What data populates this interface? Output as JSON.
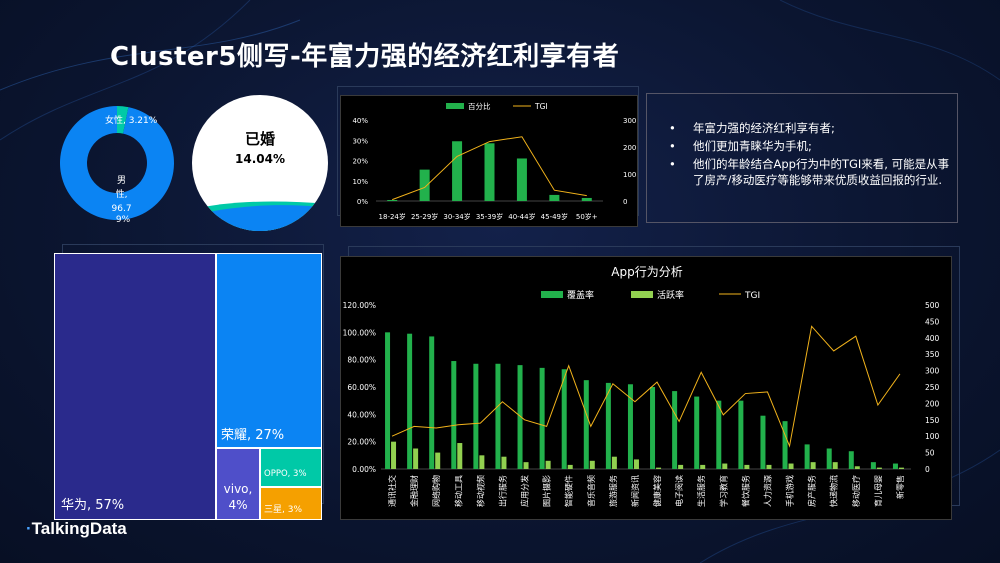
{
  "page": {
    "title": "Cluster5侧写-年富力强的经济红利享有者",
    "logo": "TalkingData"
  },
  "colors": {
    "green": "#22b14c",
    "light_green": "#92d050",
    "orange": "#f2b31b",
    "blue": "#0b84f3",
    "navy": "#2a2a8c",
    "teal": "#00c9a7",
    "purple": "#4f4fc9",
    "amber": "#f5a000"
  },
  "gender": {
    "female_label": "女性, 3.21%",
    "male_label_lines": [
      "男",
      "性,",
      "96.7",
      "9%"
    ],
    "female_value": 3.21,
    "male_value": 96.79
  },
  "married": {
    "label": "已婚",
    "value_text": "14.04%",
    "value": 14.04
  },
  "notes": {
    "items": [
      "年富力强的经济红利享有者;",
      "他们更加青睐华为手机;",
      "他们的年龄结合App行为中的TGI来看, 可能是从事了房产/移动医疗等能够带来优质收益回报的行业."
    ]
  },
  "chart_data": [
    {
      "type": "bar",
      "title": "",
      "legend": [
        "百分比",
        "TGI"
      ],
      "legend_position": "top",
      "categories": [
        "18-24岁",
        "25-29岁",
        "30-34岁",
        "35-39岁",
        "40-44岁",
        "45-49岁",
        "50岁+"
      ],
      "series": [
        {
          "name": "百分比",
          "type": "bar",
          "axis": "left",
          "values": [
            0.5,
            15.5,
            29.5,
            28.5,
            21,
            3,
            1.5
          ]
        },
        {
          "name": "TGI",
          "type": "line",
          "axis": "right",
          "values": [
            5,
            50,
            165,
            220,
            238,
            40,
            20
          ]
        }
      ],
      "y_left": {
        "ticks": [
          "0%",
          "10%",
          "20%",
          "30%",
          "40%"
        ],
        "ylim": [
          0,
          40
        ]
      },
      "y_right": {
        "ticks": [
          "0",
          "100",
          "200",
          "300"
        ],
        "ylim": [
          0,
          300
        ]
      }
    },
    {
      "type": "bar",
      "title": "App行为分析",
      "legend": [
        "覆盖率",
        "活跃率",
        "TGI"
      ],
      "legend_position": "top",
      "categories": [
        "通讯社交",
        "金融理财",
        "网络购物",
        "移动工具",
        "移动视频",
        "出行服务",
        "应用分发",
        "图片摄影",
        "智能硬件",
        "音乐音频",
        "旅游服务",
        "新闻资讯",
        "健康美容",
        "电子阅读",
        "生活服务",
        "学习教育",
        "餐饮服务",
        "人力资源",
        "手机游戏",
        "房产服务",
        "快递物流",
        "移动医疗",
        "育儿母婴",
        "新零售"
      ],
      "series": [
        {
          "name": "覆盖率",
          "type": "bar",
          "axis": "left",
          "values": [
            100,
            99,
            97,
            79,
            77,
            77,
            76,
            74,
            73,
            65,
            63,
            62,
            60,
            57,
            53,
            50,
            50,
            39,
            35,
            18,
            15,
            13,
            5,
            4
          ]
        },
        {
          "name": "活跃率",
          "type": "bar",
          "axis": "left",
          "values": [
            20,
            15,
            12,
            19,
            10,
            9,
            5,
            6,
            3,
            6,
            9,
            7,
            1,
            3,
            3,
            4,
            3,
            3,
            4,
            5,
            5,
            2,
            1,
            1
          ]
        },
        {
          "name": "TGI",
          "type": "line",
          "axis": "right",
          "values": [
            100,
            130,
            125,
            135,
            140,
            205,
            150,
            130,
            315,
            130,
            260,
            205,
            265,
            145,
            295,
            165,
            230,
            235,
            70,
            435,
            360,
            405,
            195,
            290
          ]
        }
      ],
      "y_left": {
        "ticks": [
          "0.00%",
          "20.00%",
          "40.00%",
          "60.00%",
          "80.00%",
          "100.00%",
          "120.00%"
        ],
        "ylim": [
          0,
          120
        ]
      },
      "y_right": {
        "ticks": [
          "0",
          "50",
          "100",
          "150",
          "200",
          "250",
          "300",
          "350",
          "400",
          "450",
          "500"
        ],
        "ylim": [
          0,
          500
        ]
      }
    },
    {
      "type": "treemap",
      "items": [
        {
          "label": "华为, 57%",
          "value": 57
        },
        {
          "label": "荣耀, 27%",
          "value": 27
        },
        {
          "label": "vivo, 4%",
          "label_lines": [
            "vivo,",
            "4%"
          ],
          "value": 4
        },
        {
          "label": "OPPO, 3%",
          "value": 3
        },
        {
          "label": "三星, 3%",
          "value": 3
        }
      ]
    }
  ]
}
